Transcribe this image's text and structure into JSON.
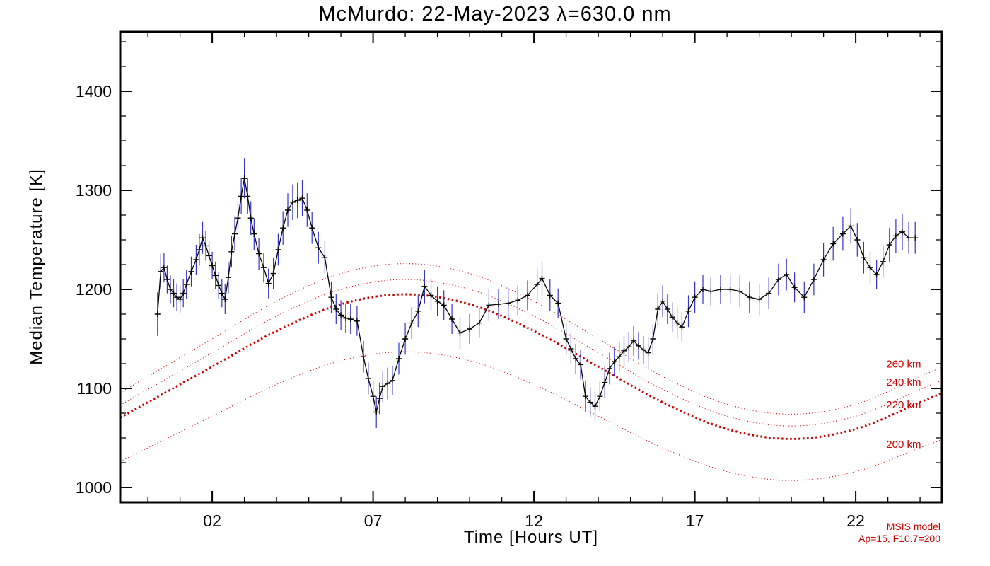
{
  "page": {
    "background": "#ffffff"
  },
  "chart_data": {
    "type": "line",
    "title": "McMurdo: 22-May-2023 λ=630.0 nm",
    "xlabel": "Time [Hours UT]",
    "ylabel": "Median Temperature [K]",
    "xlim": [
      -0.86,
      24.68
    ],
    "ylim": [
      985,
      1460
    ],
    "grid": false,
    "xaxis": {
      "ticks": [
        2,
        7,
        12,
        17,
        22
      ],
      "labels": [
        "02",
        "07",
        "12",
        "17",
        "22"
      ],
      "minor_step": 1
    },
    "yaxis": {
      "ticks": [
        1000,
        1100,
        1200,
        1300,
        1400
      ],
      "labels": [
        "1000",
        "1100",
        "1200",
        "1300",
        "1400"
      ],
      "minor_step": 25
    },
    "series": {
      "name": "median temperature with error bars",
      "color": "#000000",
      "errorbar_color": "#3333cc",
      "points": [
        [
          0.3,
          1175,
          22
        ],
        [
          0.4,
          1218,
          18
        ],
        [
          0.5,
          1222,
          15
        ],
        [
          0.6,
          1210,
          14
        ],
        [
          0.7,
          1200,
          14
        ],
        [
          0.8,
          1196,
          14
        ],
        [
          0.9,
          1192,
          14
        ],
        [
          1.0,
          1190,
          14
        ],
        [
          1.1,
          1196,
          14
        ],
        [
          1.2,
          1205,
          15
        ],
        [
          1.35,
          1218,
          15
        ],
        [
          1.5,
          1230,
          15
        ],
        [
          1.6,
          1240,
          16
        ],
        [
          1.7,
          1252,
          16
        ],
        [
          1.8,
          1244,
          15
        ],
        [
          1.9,
          1234,
          15
        ],
        [
          2.0,
          1224,
          14
        ],
        [
          2.1,
          1214,
          14
        ],
        [
          2.2,
          1204,
          14
        ],
        [
          2.3,
          1196,
          14
        ],
        [
          2.4,
          1190,
          15
        ],
        [
          2.5,
          1212,
          16
        ],
        [
          2.6,
          1238,
          16
        ],
        [
          2.7,
          1256,
          17
        ],
        [
          2.8,
          1272,
          17
        ],
        [
          2.9,
          1294,
          18
        ],
        [
          3.0,
          1312,
          20
        ],
        [
          3.1,
          1294,
          18
        ],
        [
          3.2,
          1272,
          17
        ],
        [
          3.3,
          1256,
          16
        ],
        [
          3.45,
          1236,
          16
        ],
        [
          3.6,
          1222,
          15
        ],
        [
          3.75,
          1206,
          15
        ],
        [
          3.9,
          1216,
          16
        ],
        [
          4.05,
          1240,
          16
        ],
        [
          4.2,
          1262,
          17
        ],
        [
          4.35,
          1280,
          17
        ],
        [
          4.5,
          1288,
          18
        ],
        [
          4.65,
          1290,
          18
        ],
        [
          4.8,
          1292,
          18
        ],
        [
          4.95,
          1280,
          17
        ],
        [
          5.1,
          1262,
          16
        ],
        [
          5.3,
          1242,
          16
        ],
        [
          5.5,
          1232,
          16
        ],
        [
          5.7,
          1192,
          16
        ],
        [
          5.85,
          1180,
          15
        ],
        [
          6.0,
          1174,
          15
        ],
        [
          6.15,
          1171,
          15
        ],
        [
          6.3,
          1170,
          15
        ],
        [
          6.5,
          1168,
          15
        ],
        [
          6.7,
          1132,
          16
        ],
        [
          6.85,
          1110,
          16
        ],
        [
          7.0,
          1092,
          16
        ],
        [
          7.1,
          1076,
          16
        ],
        [
          7.2,
          1090,
          16
        ],
        [
          7.3,
          1102,
          16
        ],
        [
          7.45,
          1105,
          16
        ],
        [
          7.6,
          1108,
          15
        ],
        [
          7.8,
          1130,
          16
        ],
        [
          8.0,
          1150,
          16
        ],
        [
          8.2,
          1166,
          16
        ],
        [
          8.4,
          1178,
          16
        ],
        [
          8.6,
          1203,
          17
        ],
        [
          8.8,
          1194,
          16
        ],
        [
          9.0,
          1188,
          15
        ],
        [
          9.2,
          1184,
          15
        ],
        [
          9.45,
          1170,
          15
        ],
        [
          9.7,
          1156,
          16
        ],
        [
          10.0,
          1160,
          15
        ],
        [
          10.3,
          1166,
          15
        ],
        [
          10.6,
          1184,
          16
        ],
        [
          10.9,
          1185,
          15
        ],
        [
          11.2,
          1186,
          15
        ],
        [
          11.5,
          1189,
          15
        ],
        [
          11.8,
          1194,
          15
        ],
        [
          12.1,
          1205,
          16
        ],
        [
          12.25,
          1211,
          17
        ],
        [
          12.5,
          1194,
          16
        ],
        [
          12.75,
          1186,
          15
        ],
        [
          13.0,
          1150,
          16
        ],
        [
          13.15,
          1140,
          16
        ],
        [
          13.3,
          1130,
          15
        ],
        [
          13.45,
          1124,
          15
        ],
        [
          13.6,
          1092,
          16
        ],
        [
          13.75,
          1086,
          15
        ],
        [
          13.9,
          1082,
          15
        ],
        [
          14.05,
          1092,
          15
        ],
        [
          14.2,
          1106,
          16
        ],
        [
          14.35,
          1120,
          16
        ],
        [
          14.5,
          1127,
          15
        ],
        [
          14.65,
          1132,
          15
        ],
        [
          14.8,
          1138,
          15
        ],
        [
          14.95,
          1142,
          15
        ],
        [
          15.1,
          1148,
          15
        ],
        [
          15.25,
          1143,
          14
        ],
        [
          15.4,
          1139,
          14
        ],
        [
          15.55,
          1136,
          16
        ],
        [
          15.7,
          1150,
          15
        ],
        [
          15.85,
          1180,
          16
        ],
        [
          16.0,
          1188,
          16
        ],
        [
          16.15,
          1180,
          15
        ],
        [
          16.3,
          1172,
          15
        ],
        [
          16.45,
          1166,
          16
        ],
        [
          16.6,
          1162,
          15
        ],
        [
          16.8,
          1178,
          16
        ],
        [
          17.0,
          1192,
          16
        ],
        [
          17.25,
          1200,
          15
        ],
        [
          17.5,
          1198,
          15
        ],
        [
          17.8,
          1200,
          15
        ],
        [
          18.1,
          1200,
          15
        ],
        [
          18.4,
          1198,
          16
        ],
        [
          18.7,
          1192,
          16
        ],
        [
          19.0,
          1190,
          16
        ],
        [
          19.3,
          1196,
          16
        ],
        [
          19.6,
          1210,
          16
        ],
        [
          19.85,
          1215,
          16
        ],
        [
          20.1,
          1202,
          15
        ],
        [
          20.4,
          1192,
          16
        ],
        [
          20.7,
          1210,
          16
        ],
        [
          21.0,
          1230,
          17
        ],
        [
          21.3,
          1246,
          17
        ],
        [
          21.6,
          1256,
          17
        ],
        [
          21.85,
          1264,
          18
        ],
        [
          22.05,
          1250,
          17
        ],
        [
          22.25,
          1232,
          16
        ],
        [
          22.45,
          1222,
          16
        ],
        [
          22.65,
          1215,
          15
        ],
        [
          22.85,
          1228,
          16
        ],
        [
          23.05,
          1245,
          17
        ],
        [
          23.25,
          1254,
          17
        ],
        [
          23.45,
          1258,
          18
        ],
        [
          23.65,
          1252,
          16
        ],
        [
          23.85,
          1252,
          16
        ]
      ]
    },
    "model": {
      "name": "MSIS model",
      "color": "#cc0000",
      "x": [
        0,
        2,
        4,
        6,
        8,
        10,
        12,
        14,
        16,
        18,
        20,
        22,
        24
      ],
      "curves": [
        {
          "altitude": "260 km",
          "thick": false,
          "values": [
            1112,
            1150,
            1188,
            1216,
            1226,
            1216,
            1188,
            1150,
            1112,
            1084,
            1074,
            1084,
            1112
          ]
        },
        {
          "altitude": "240 km",
          "thick": false,
          "values": [
            1099,
            1136,
            1173,
            1200,
            1210,
            1200,
            1173,
            1136,
            1099,
            1072,
            1062,
            1072,
            1099
          ]
        },
        {
          "altitude": "220 km",
          "thick": true,
          "values": [
            1086,
            1122,
            1158,
            1185,
            1195,
            1185,
            1158,
            1122,
            1086,
            1059,
            1049,
            1059,
            1086
          ]
        },
        {
          "altitude": "200 km",
          "thick": false,
          "values": [
            1040,
            1072,
            1104,
            1128,
            1137,
            1128,
            1104,
            1072,
            1040,
            1016,
            1007,
            1016,
            1040
          ]
        }
      ],
      "labels": [
        {
          "text": "260 km",
          "x": 22.95,
          "y": 1121
        },
        {
          "text": "240 km",
          "x": 22.95,
          "y": 1103
        },
        {
          "text": "220 km",
          "x": 22.95,
          "y": 1080
        },
        {
          "text": "200 km",
          "x": 22.95,
          "y": 1040
        }
      ]
    },
    "annotation": {
      "line1": "MSIS model",
      "line2": "Ap=15, F10.7=200",
      "color": "#cc0000"
    }
  }
}
